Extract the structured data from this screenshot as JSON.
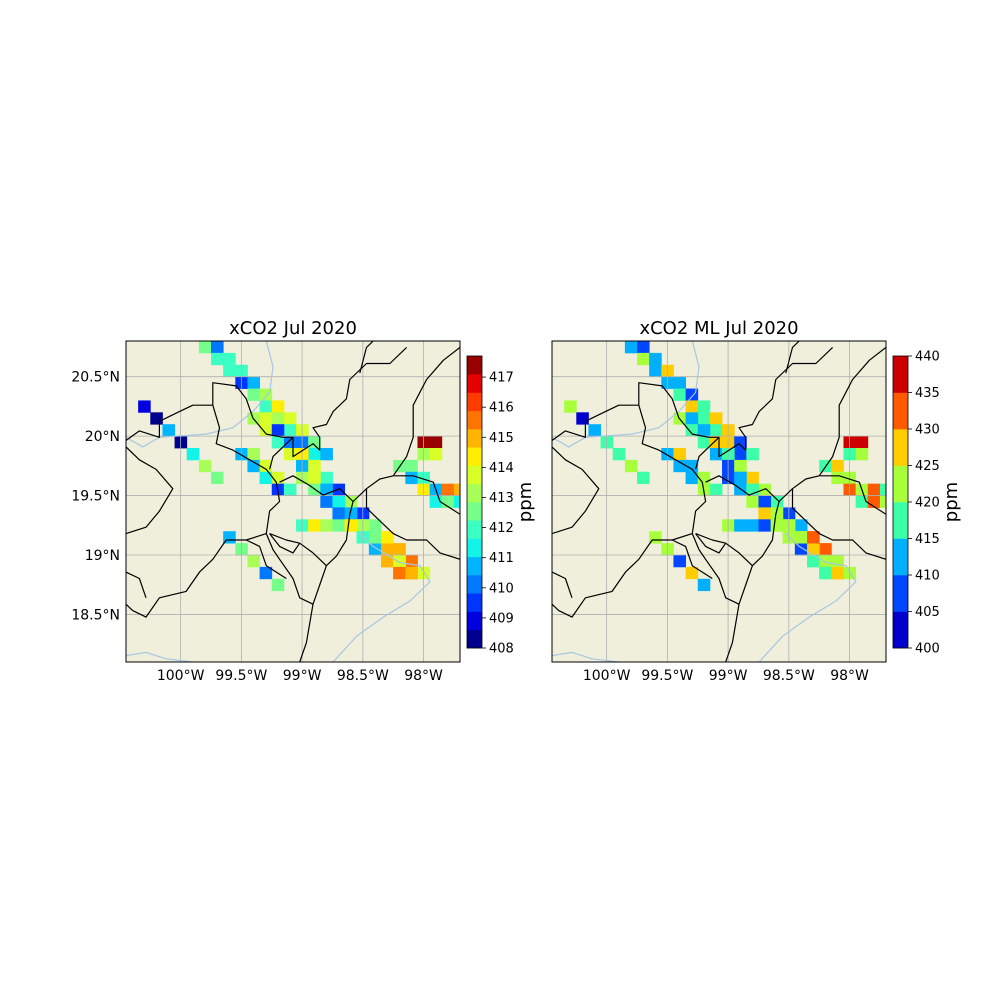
{
  "figure": {
    "panels": [
      {
        "title": "xCO2 Jul 2020",
        "colorbar": {
          "label": "ppm",
          "vmin": 408,
          "vmax": 417.7,
          "ticks": [
            "408",
            "409",
            "410",
            "411",
            "412",
            "413",
            "414",
            "415",
            "416",
            "417"
          ],
          "tick_values": [
            408,
            409,
            410,
            411,
            412,
            413,
            414,
            415,
            416,
            417
          ],
          "colors": [
            "#00008f",
            "#0000e0",
            "#0034ff",
            "#0078ff",
            "#00b4ff",
            "#13f4e8",
            "#3cffc3",
            "#75ff8a",
            "#a8ff57",
            "#d8ff27",
            "#ffee00",
            "#ffb400",
            "#ff7400",
            "#ff3c00",
            "#e60000",
            "#9a0000"
          ]
        }
      },
      {
        "title": "xCO2 ML Jul 2020",
        "colorbar": {
          "label": "ppm",
          "vmin": 400,
          "vmax": 440,
          "ticks": [
            "400",
            "405",
            "410",
            "415",
            "420",
            "425",
            "430",
            "435",
            "440"
          ],
          "tick_values": [
            400,
            405,
            410,
            415,
            420,
            425,
            430,
            435,
            440
          ],
          "colors": [
            "#0000cd",
            "#0047ff",
            "#00b0ff",
            "#3cffa8",
            "#a8ff3c",
            "#ffcc00",
            "#ff5a00",
            "#cd0000"
          ]
        }
      }
    ],
    "longitude_ticks": [
      "100°W",
      "99.5°W",
      "99°W",
      "98.5°W",
      "98°W"
    ],
    "latitude_ticks": [
      "20.5°N",
      "20°N",
      "19.5°N",
      "19°N",
      "18.5°N"
    ],
    "extent": {
      "lon_min": -100.45,
      "lon_max": -97.7,
      "lat_min": 18.1,
      "lat_max": 20.8
    },
    "colors": {
      "land": "#efefdb",
      "river": "#a9c6e2",
      "border": "#000000",
      "grid": "#b0b0b0"
    }
  }
}
